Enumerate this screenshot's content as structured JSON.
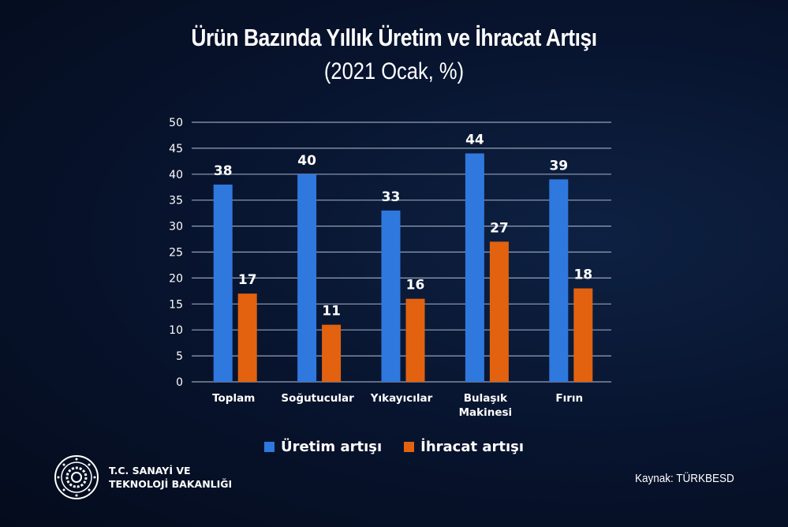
{
  "title": "Ürün Bazında Yıllık Üretim ve İhracat Artışı",
  "subtitle": "(2021 Ocak, %)",
  "chart_data": {
    "type": "bar",
    "categories": [
      "Toplam",
      "Soğutucular",
      "Yıkayıcılar",
      "Bulaşık Makinesi",
      "Fırın"
    ],
    "series": [
      {
        "name": "Üretim artışı",
        "color": "#2f78de",
        "values": [
          38,
          40,
          33,
          44,
          39
        ]
      },
      {
        "name": "İhracat artışı",
        "color": "#e2620f",
        "values": [
          17,
          11,
          16,
          27,
          18
        ]
      }
    ],
    "ylim": [
      0,
      50
    ],
    "yticks": [
      0,
      5,
      10,
      15,
      20,
      25,
      30,
      35,
      40,
      45,
      50
    ],
    "grid": true,
    "legend": "bottom",
    "data_labels": true
  },
  "footer": {
    "logo_line1": "T.C. SANAYİ VE",
    "logo_line2": "TEKNOLOJİ BAKANLIĞI",
    "source": "Kaynak:  TÜRKBESD"
  }
}
